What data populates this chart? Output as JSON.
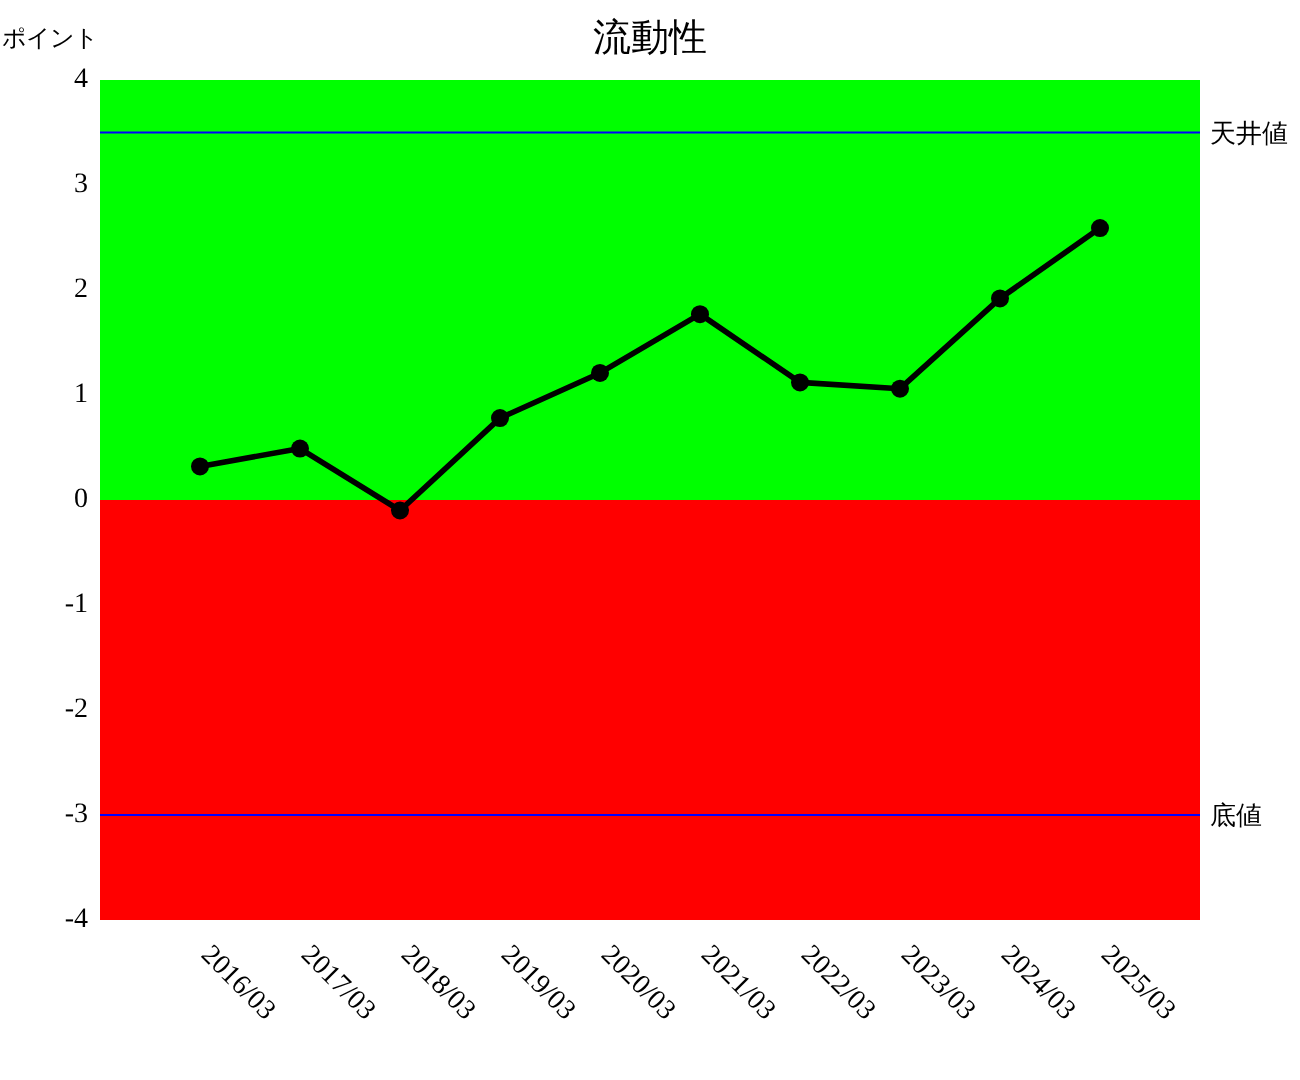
{
  "chart_data": {
    "type": "line",
    "title": "流動性",
    "ylabel": "ポイント",
    "categories": [
      "2016/03",
      "2017/03",
      "2018/03",
      "2019/03",
      "2020/03",
      "2021/03",
      "2022/03",
      "2023/03",
      "2024/03",
      "2025/03"
    ],
    "series": [
      {
        "color": "#000000",
        "values": [
          0.32,
          0.49,
          -0.1,
          0.78,
          1.21,
          1.77,
          1.12,
          1.06,
          1.92,
          2.59
        ]
      }
    ],
    "ylim": [
      -4,
      4
    ],
    "yticks": [
      -4,
      -3,
      -2,
      -1,
      0,
      1,
      2,
      3,
      4
    ],
    "bands": [
      {
        "axis": "y",
        "from": 0,
        "to": 4,
        "color": "#00ff00"
      },
      {
        "axis": "y",
        "from": -4,
        "to": 0,
        "color": "#ff0000"
      }
    ],
    "ref_lines": [
      {
        "axis": "y",
        "value": 3.5,
        "label": "天井値",
        "color": "#0000ff"
      },
      {
        "axis": "y",
        "value": -3,
        "label": "底値",
        "color": "#0000ff"
      }
    ],
    "marker": "circle",
    "line_style": "solid"
  }
}
